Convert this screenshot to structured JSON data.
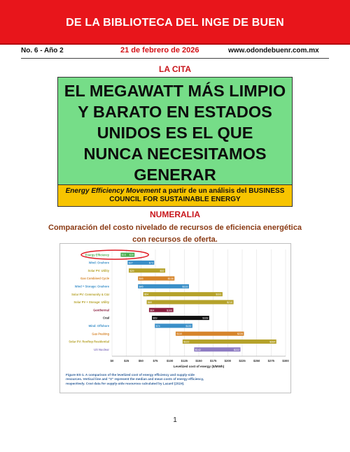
{
  "header": {
    "title": "DE LA BIBLIOTECA DEL INGE DE BUEN",
    "issue": "No. 6 - Año 2",
    "date": "21 de febrero de 2026",
    "website": "www.odondebuenr.com.mx"
  },
  "cita": {
    "heading": "LA CITA",
    "quote": "EL MEGAWATT MÁS LIMPIO\nY BARATO EN ESTADOS\nUNIDOS ES EL QUE\nNUNCA NECESITAMOS\nGENERAR",
    "source_org": "Energy Efficiency Movement",
    "source_mid": " a partir de un análisis del ",
    "source_council_1": "BUSINESS",
    "source_council_2": "COUNCIL FOR SUSTAINABLE ENERGY"
  },
  "numeralia": {
    "heading": "NUMERALIA",
    "subtitle": "Comparación del costo nivelado de recursos de eficiencia energética\ncon recursos de oferta."
  },
  "chart_data": {
    "type": "bar",
    "subtype": "floating-range",
    "xlabel": "Levelized cost of energy ($/MWh)",
    "xlim": [
      0,
      300
    ],
    "xticks": [
      "$0",
      "$25",
      "$50",
      "$75",
      "$100",
      "$125",
      "$150",
      "$175",
      "$200",
      "$225",
      "$250",
      "$275",
      "$300"
    ],
    "caption": "Figure ES-1. A comparison of the levelized cost of energy efficiency and supply-side resources. Vertical line and \"X\" represent the median and mean costs of energy efficiency, respectively. Cost data for supply-side resources calculated by Lazard (2024).",
    "highlight": "Energy Efficiency",
    "series": [
      {
        "name": "Energy Efficiency",
        "low": 15,
        "high": 39,
        "low_label": "$15",
        "high_label": "$39",
        "color": "#4caf50"
      },
      {
        "name": "Wind: Onshore",
        "low": 27,
        "high": 73,
        "low_label": "$27",
        "high_label": "$73",
        "color": "#3a8fc8"
      },
      {
        "name": "Solar PV: Utility",
        "low": 29,
        "high": 92,
        "low_label": "$29",
        "high_label": "$92",
        "color": "#b5a22a"
      },
      {
        "name": "Gas Combined Cycle",
        "low": 45,
        "high": 108,
        "low_label": "$45",
        "high_label": "$108",
        "color": "#d6842a"
      },
      {
        "name": "Wind + Storage: Onshore",
        "low": 45,
        "high": 133,
        "low_label": "$45",
        "high_label": "$133",
        "color": "#3a8fc8"
      },
      {
        "name": "Solar PV: Community & C&I",
        "low": 54,
        "high": 191,
        "low_label": "$54",
        "high_label": "$191",
        "color": "#b5a22a"
      },
      {
        "name": "Solar PV + Storage: Utility",
        "low": 60,
        "high": 210,
        "low_label": "$60",
        "high_label": "$210",
        "color": "#b5a22a"
      },
      {
        "name": "Geothermal",
        "low": 64,
        "high": 106,
        "low_label": "$64",
        "high_label": "$106",
        "color": "#8b1e3f"
      },
      {
        "name": "Coal",
        "low": 69,
        "high": 168,
        "low_label": "$69",
        "high_label": "$168",
        "color": "#111111"
      },
      {
        "name": "Wind: Offshore",
        "low": 74,
        "high": 139,
        "low_label": "$74",
        "high_label": "$139",
        "color": "#3a8fc8"
      },
      {
        "name": "Gas Peaking",
        "low": 110,
        "high": 228,
        "low_label": "$110",
        "high_label": "$228",
        "color": "#d6842a"
      },
      {
        "name": "Solar PV: Rooftop Residential",
        "low": 122,
        "high": 284,
        "low_label": "$122",
        "high_label": "$284",
        "color": "#b5a22a"
      },
      {
        "name": "US Nuclear",
        "low": 142,
        "high": 222,
        "low_label": "$142",
        "high_label": "$222",
        "color": "#8e7cc3"
      }
    ]
  },
  "footer": {
    "page_number": "1"
  },
  "colors": {
    "banner": "#e8151b",
    "accent_red": "#c8151b",
    "quote_bg": "#76dd88",
    "source_bg": "#f7c400",
    "subtitle": "#8a3a14"
  }
}
